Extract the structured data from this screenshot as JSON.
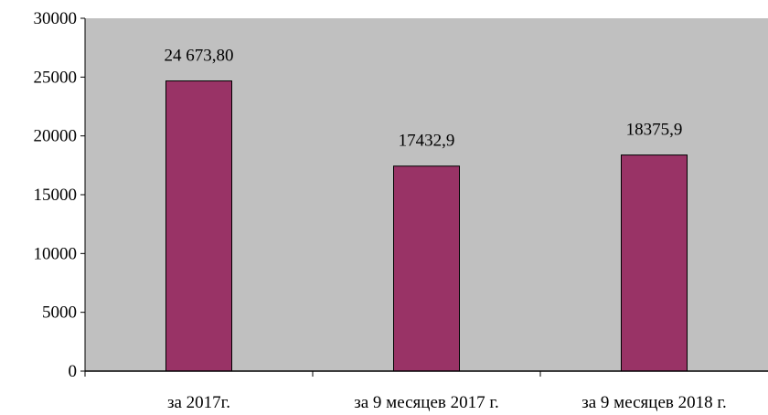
{
  "chart_data": {
    "type": "bar",
    "categories": [
      "за 2017г.",
      "за 9 месяцев 2017 г.",
      "за 9 месяцев 2018 г."
    ],
    "values": [
      24673.8,
      17432.9,
      18375.9
    ],
    "data_labels": [
      "24 673,80",
      "17432,9",
      "18375,9"
    ],
    "y_ticks": [
      "0",
      "5000",
      "10000",
      "15000",
      "20000",
      "25000",
      "30000"
    ],
    "ylim": [
      0,
      30000
    ],
    "grid": false,
    "title": "",
    "xlabel": "",
    "ylabel": "",
    "colors": {
      "bar": "#993366",
      "plot_bg": "#c0c0c0",
      "axis": "#000000"
    }
  }
}
